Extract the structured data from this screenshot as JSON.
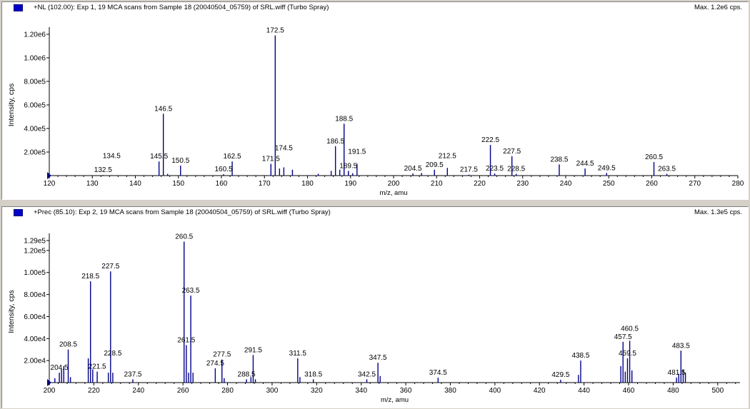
{
  "panels": [
    {
      "header": {
        "title": "+NL (102.00): Exp 1, 19 MCA scans from Sample 18 (20040504_05759) of SRL.wiff (Turbo Spray)",
        "max": "Max. 1.2e6 cps."
      }
    },
    {
      "header": {
        "title": "+Prec (85.10): Exp 2, 19 MCA scans from Sample 18 (20040504_05759) of SRL.wiff (Turbo Spray)",
        "max": "Max. 1.3e5 cps."
      }
    }
  ],
  "chart_data": [
    {
      "type": "bar",
      "xlabel": "m/z, amu",
      "ylabel": "Intensity, cps",
      "xlim": [
        120,
        280
      ],
      "ylim": [
        0,
        1200000
      ],
      "x_ticks": [
        120,
        130,
        140,
        150,
        160,
        170,
        180,
        190,
        200,
        210,
        220,
        230,
        240,
        250,
        260,
        270,
        280
      ],
      "y_ticks": [
        200000,
        400000,
        600000,
        800000,
        1000000,
        1200000
      ],
      "y_tick_labels": [
        "2.00e5",
        "4.00e5",
        "6.00e5",
        "8.00e5",
        "1.00e6",
        "1.20e6"
      ],
      "peaks": [
        {
          "x": 132.5,
          "y": 5000
        },
        {
          "x": 134.5,
          "y": 4000
        },
        {
          "x": 145.5,
          "y": 120000
        },
        {
          "x": 146.5,
          "y": 525000
        },
        {
          "x": 147.5,
          "y": 15000
        },
        {
          "x": 150.5,
          "y": 85000
        },
        {
          "x": 160.5,
          "y": 12000
        },
        {
          "x": 162.5,
          "y": 120000
        },
        {
          "x": 171.5,
          "y": 100000
        },
        {
          "x": 172.5,
          "y": 1190000
        },
        {
          "x": 173.5,
          "y": 60000
        },
        {
          "x": 174.5,
          "y": 70000
        },
        {
          "x": 176.5,
          "y": 50000
        },
        {
          "x": 182.5,
          "y": 15000
        },
        {
          "x": 185.5,
          "y": 40000
        },
        {
          "x": 186.5,
          "y": 250000
        },
        {
          "x": 187.5,
          "y": 50000
        },
        {
          "x": 188.5,
          "y": 440000
        },
        {
          "x": 189.5,
          "y": 40000
        },
        {
          "x": 190.5,
          "y": 20000
        },
        {
          "x": 191.5,
          "y": 100000
        },
        {
          "x": 204.5,
          "y": 18000
        },
        {
          "x": 206.5,
          "y": 22000
        },
        {
          "x": 209.5,
          "y": 50000
        },
        {
          "x": 212.5,
          "y": 65000
        },
        {
          "x": 217.5,
          "y": 8000
        },
        {
          "x": 222.5,
          "y": 260000
        },
        {
          "x": 223.5,
          "y": 18000
        },
        {
          "x": 227.5,
          "y": 165000
        },
        {
          "x": 228.5,
          "y": 15000
        },
        {
          "x": 238.5,
          "y": 95000
        },
        {
          "x": 244.5,
          "y": 60000
        },
        {
          "x": 249.5,
          "y": 22000
        },
        {
          "x": 260.5,
          "y": 115000
        },
        {
          "x": 263.5,
          "y": 15000
        }
      ],
      "labels": [
        {
          "x": 132.5,
          "text": "132.5"
        },
        {
          "x": 134.5,
          "text": "134.5"
        },
        {
          "x": 145.5,
          "text": "145.5"
        },
        {
          "x": 146.5,
          "text": "146.5"
        },
        {
          "x": 150.5,
          "text": "150.5"
        },
        {
          "x": 160.5,
          "text": "160.5"
        },
        {
          "x": 162.5,
          "text": "162.5"
        },
        {
          "x": 171.5,
          "text": "171.5"
        },
        {
          "x": 172.5,
          "text": "172.5"
        },
        {
          "x": 174.5,
          "text": "174.5"
        },
        {
          "x": 186.5,
          "text": "186.5"
        },
        {
          "x": 188.5,
          "text": "188.5"
        },
        {
          "x": 189.5,
          "text": "189.5"
        },
        {
          "x": 191.5,
          "text": "191.5"
        },
        {
          "x": 204.5,
          "text": "204.5"
        },
        {
          "x": 209.5,
          "text": "209.5"
        },
        {
          "x": 212.5,
          "text": "212.5"
        },
        {
          "x": 217.5,
          "text": "217.5"
        },
        {
          "x": 222.5,
          "text": "222.5"
        },
        {
          "x": 223.5,
          "text": "223.5"
        },
        {
          "x": 227.5,
          "text": "227.5"
        },
        {
          "x": 228.5,
          "text": "228.5"
        },
        {
          "x": 238.5,
          "text": "238.5"
        },
        {
          "x": 244.5,
          "text": "244.5"
        },
        {
          "x": 249.5,
          "text": "249.5"
        },
        {
          "x": 260.5,
          "text": "260.5"
        },
        {
          "x": 263.5,
          "text": "263.5"
        }
      ]
    },
    {
      "type": "bar",
      "xlabel": "m/z, amu",
      "ylabel": "Intensity, cps",
      "xlim": [
        200,
        510
      ],
      "ylim": [
        0,
        129000
      ],
      "x_ticks": [
        200,
        220,
        240,
        260,
        280,
        300,
        320,
        340,
        360,
        380,
        400,
        420,
        440,
        460,
        480,
        500
      ],
      "y_ticks": [
        20000,
        40000,
        60000,
        80000,
        100000,
        120000,
        129000
      ],
      "y_tick_labels": [
        "2.00e4",
        "4.00e4",
        "6.00e4",
        "8.00e4",
        "1.00e5",
        "1.20e5",
        "1.29e5"
      ],
      "peaks": [
        {
          "x": 202.5,
          "y": 4000
        },
        {
          "x": 204.5,
          "y": 9000
        },
        {
          "x": 205.5,
          "y": 12000
        },
        {
          "x": 206.5,
          "y": 15000
        },
        {
          "x": 208.5,
          "y": 30000
        },
        {
          "x": 209.5,
          "y": 5000
        },
        {
          "x": 217.5,
          "y": 22000
        },
        {
          "x": 218.5,
          "y": 92000
        },
        {
          "x": 219.5,
          "y": 12000
        },
        {
          "x": 221.5,
          "y": 10000
        },
        {
          "x": 226.5,
          "y": 9000
        },
        {
          "x": 227.5,
          "y": 101000
        },
        {
          "x": 228.5,
          "y": 9000
        },
        {
          "x": 237.5,
          "y": 3000
        },
        {
          "x": 260.5,
          "y": 128000
        },
        {
          "x": 261.5,
          "y": 34000
        },
        {
          "x": 262.5,
          "y": 9000
        },
        {
          "x": 263.5,
          "y": 79000
        },
        {
          "x": 264.5,
          "y": 9000
        },
        {
          "x": 274.5,
          "y": 13000
        },
        {
          "x": 277.5,
          "y": 21000
        },
        {
          "x": 278.5,
          "y": 4000
        },
        {
          "x": 288.5,
          "y": 3000
        },
        {
          "x": 290.5,
          "y": 5000
        },
        {
          "x": 291.5,
          "y": 25000
        },
        {
          "x": 292.5,
          "y": 3000
        },
        {
          "x": 311.5,
          "y": 22000
        },
        {
          "x": 312.5,
          "y": 5000
        },
        {
          "x": 318.5,
          "y": 3000
        },
        {
          "x": 342.5,
          "y": 3000
        },
        {
          "x": 347.5,
          "y": 18000
        },
        {
          "x": 348.5,
          "y": 6000
        },
        {
          "x": 374.5,
          "y": 4500
        },
        {
          "x": 429.5,
          "y": 2500
        },
        {
          "x": 438.5,
          "y": 20000
        },
        {
          "x": 437.5,
          "y": 7000
        },
        {
          "x": 456.5,
          "y": 15000
        },
        {
          "x": 457.5,
          "y": 37000
        },
        {
          "x": 458.5,
          "y": 10000
        },
        {
          "x": 459.5,
          "y": 22000
        },
        {
          "x": 460.5,
          "y": 38000
        },
        {
          "x": 461.5,
          "y": 11000
        },
        {
          "x": 481.5,
          "y": 4500
        },
        {
          "x": 482.5,
          "y": 8000
        },
        {
          "x": 483.5,
          "y": 29000
        },
        {
          "x": 484.5,
          "y": 12000
        },
        {
          "x": 485.5,
          "y": 9000
        }
      ],
      "labels": [
        {
          "x": 204.5,
          "text": "204.5"
        },
        {
          "x": 208.5,
          "text": "208.5"
        },
        {
          "x": 218.5,
          "text": "218.5"
        },
        {
          "x": 221.5,
          "text": "221.5"
        },
        {
          "x": 227.5,
          "text": "227.5"
        },
        {
          "x": 228.5,
          "text": "228.5"
        },
        {
          "x": 237.5,
          "text": "237.5"
        },
        {
          "x": 260.5,
          "text": "260.5"
        },
        {
          "x": 261.5,
          "text": "261.5"
        },
        {
          "x": 263.5,
          "text": "263.5"
        },
        {
          "x": 274.5,
          "text": "274.5"
        },
        {
          "x": 277.5,
          "text": "277.5"
        },
        {
          "x": 288.5,
          "text": "288.5"
        },
        {
          "x": 291.5,
          "text": "291.5"
        },
        {
          "x": 311.5,
          "text": "311.5"
        },
        {
          "x": 318.5,
          "text": "318.5"
        },
        {
          "x": 342.5,
          "text": "342.5"
        },
        {
          "x": 347.5,
          "text": "347.5"
        },
        {
          "x": 374.5,
          "text": "374.5"
        },
        {
          "x": 429.5,
          "text": "429.5"
        },
        {
          "x": 438.5,
          "text": "438.5"
        },
        {
          "x": 457.5,
          "text": "457.5"
        },
        {
          "x": 459.5,
          "text": "459.5"
        },
        {
          "x": 460.5,
          "text": "460.5"
        },
        {
          "x": 481.5,
          "text": "481.5"
        },
        {
          "x": 483.5,
          "text": "483.5"
        }
      ]
    }
  ]
}
